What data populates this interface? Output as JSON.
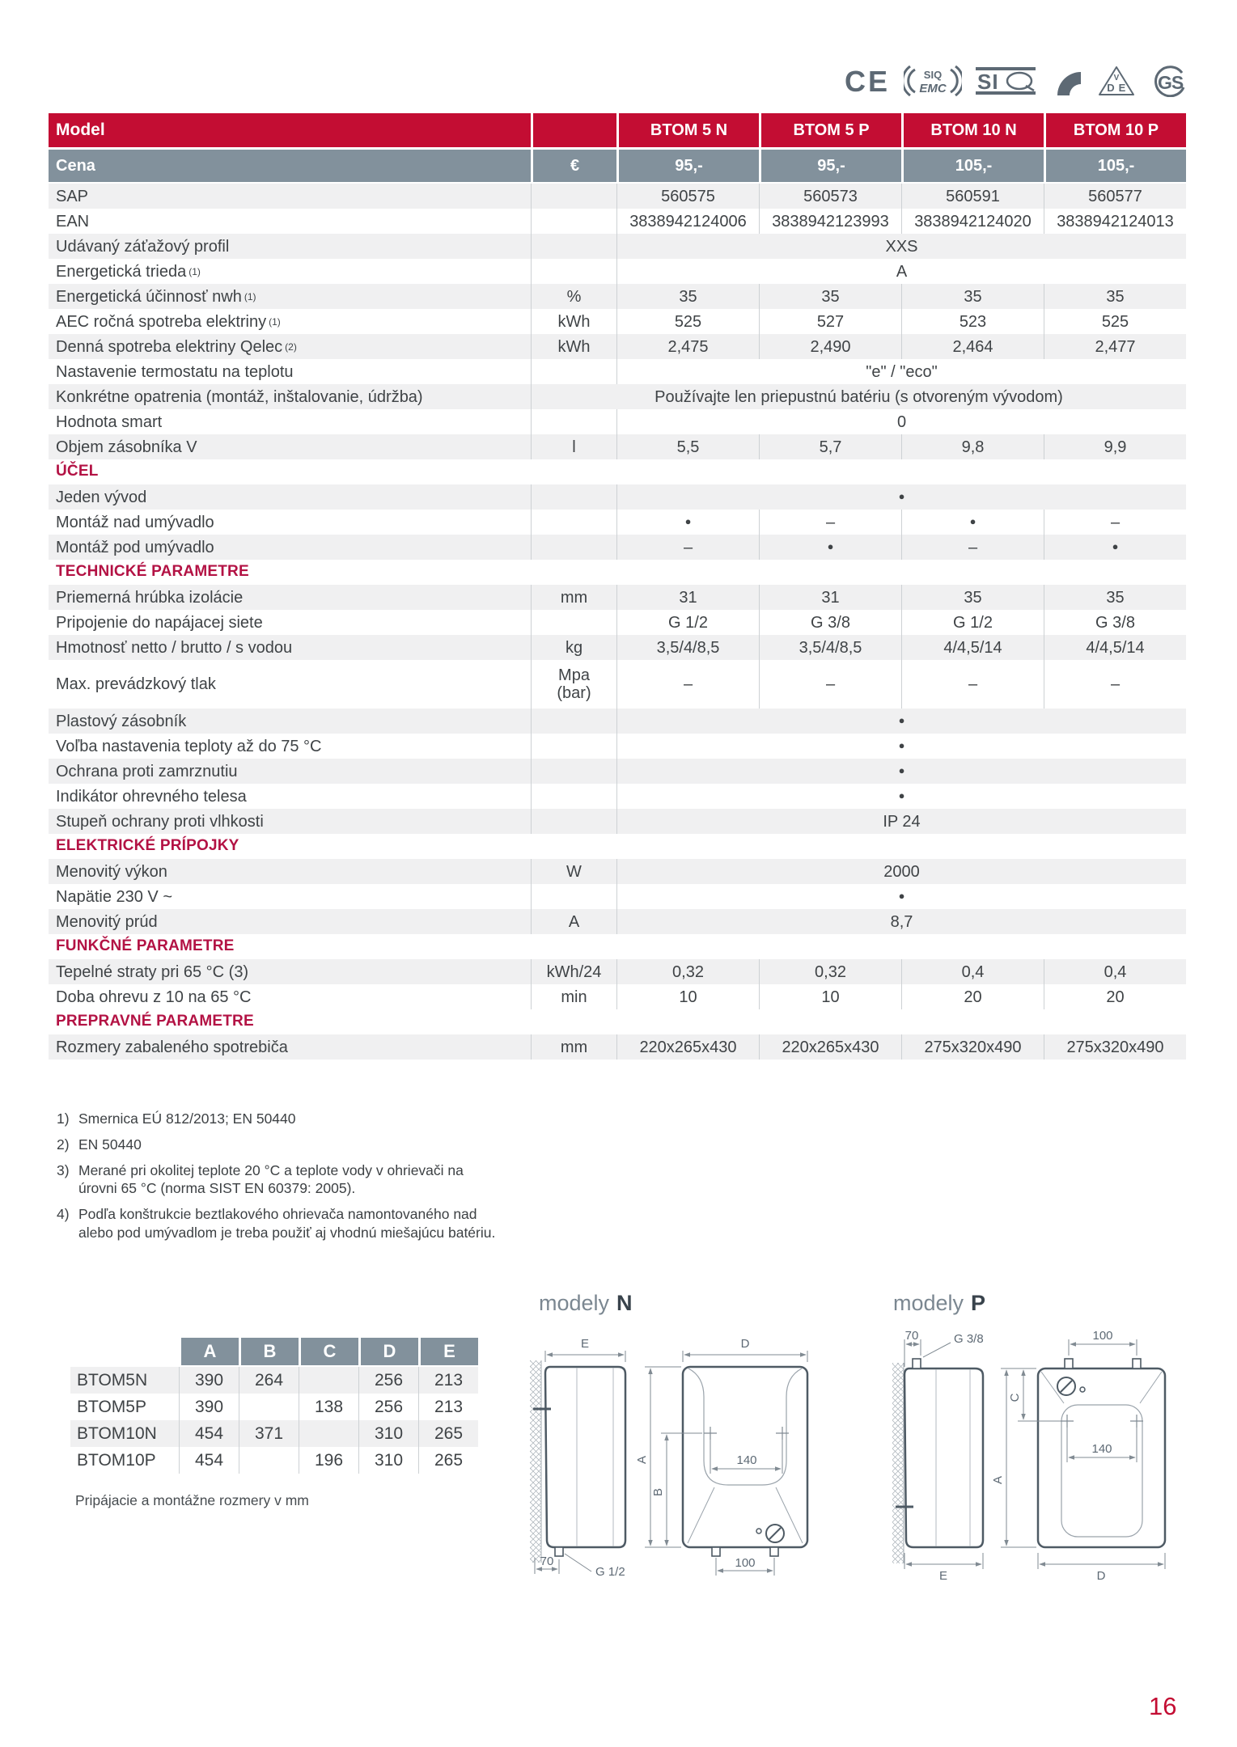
{
  "page": {
    "number": "16"
  },
  "certs": {
    "ce": "CE",
    "siq_emc_top": "SIQ",
    "siq_emc_bottom": "EMC",
    "siq": "SI",
    "vde_v": "V",
    "vde_d": "D",
    "vde_e": "E",
    "gs": "GS"
  },
  "table": {
    "rows": [
      {
        "type": "head",
        "label": "Model",
        "unit": "",
        "values": [
          "BTOM 5 N",
          "BTOM 5 P",
          "BTOM 10 N",
          "BTOM 10 P"
        ]
      },
      {
        "type": "price",
        "label": "Cena",
        "unit": "€",
        "values": [
          "95,-",
          "95,-",
          "105,-",
          "105,-"
        ]
      },
      {
        "type": "data",
        "label": "SAP",
        "unit": "",
        "values": [
          "560575",
          "560573",
          "560591",
          "560577"
        ]
      },
      {
        "type": "data",
        "label": "EAN",
        "unit": "",
        "values": [
          "3838942124006",
          "3838942123993",
          "3838942124020",
          "3838942124013"
        ]
      },
      {
        "type": "span",
        "label": "Udávaný záťažový profil",
        "unit": "",
        "value": "XXS"
      },
      {
        "type": "span",
        "label": "Energetická trieda",
        "sup": "(1)",
        "unit": "",
        "value": "A"
      },
      {
        "type": "data",
        "label": "Energetická účinnosť nwh",
        "sup": "(1)",
        "unit": "%",
        "values": [
          "35",
          "35",
          "35",
          "35"
        ]
      },
      {
        "type": "data",
        "label": "AEC ročná spotreba elektriny",
        "sup": "(1)",
        "unit": "kWh",
        "values": [
          "525",
          "527",
          "523",
          "525"
        ]
      },
      {
        "type": "data",
        "label": "Denná spotreba elektriny Qelec",
        "sup": "(2)",
        "unit": "kWh",
        "values": [
          "2,475",
          "2,490",
          "2,464",
          "2,477"
        ]
      },
      {
        "type": "span",
        "label": "Nastavenie termostatu na teplotu",
        "unit": "",
        "value": "\"e\" / \"eco\""
      },
      {
        "type": "spanwide",
        "label": "Konkrétne opatrenia (montáž, inštalovanie, údržba)",
        "value": "Používajte len priepustnú batériu (s otvoreným vývodom)"
      },
      {
        "type": "span",
        "label": "Hodnota smart",
        "unit": "",
        "value": "0"
      },
      {
        "type": "data",
        "label": "Objem zásobníka V",
        "unit": "l",
        "values": [
          "5,5",
          "5,7",
          "9,8",
          "9,9"
        ]
      },
      {
        "type": "section",
        "label": "ÚČEL"
      },
      {
        "type": "span",
        "label": "Jeden vývod",
        "unit": "",
        "value": "●"
      },
      {
        "type": "data",
        "label": "Montáž nad umývadlo",
        "unit": "",
        "values": [
          "●",
          "–",
          "●",
          "–"
        ]
      },
      {
        "type": "data",
        "label": "Montáž pod umývadlo",
        "unit": "",
        "values": [
          "–",
          "●",
          "–",
          "●"
        ]
      },
      {
        "type": "section",
        "label": "TECHNICKÉ PARAMETRE"
      },
      {
        "type": "data",
        "label": "Priemerná hrúbka izolácie",
        "unit": "mm",
        "values": [
          "31",
          "31",
          "35",
          "35"
        ]
      },
      {
        "type": "data",
        "label": "Pripojenie do napájacej siete",
        "unit": "",
        "values": [
          "G 1/2",
          "G 3/8",
          "G 1/2",
          "G 3/8"
        ]
      },
      {
        "type": "data",
        "label": "Hmotnosť netto / brutto / s vodou",
        "unit": "kg",
        "values": [
          "3,5/4/8,5",
          "3,5/4/8,5",
          "4/4,5/14",
          "4/4,5/14"
        ]
      },
      {
        "type": "tall",
        "label": "Max. prevádzkový tlak",
        "unit": "Mpa\n(bar)",
        "values": [
          "–",
          "–",
          "–",
          "–"
        ]
      },
      {
        "type": "span",
        "label": "Plastový zásobník",
        "unit": "",
        "value": "●"
      },
      {
        "type": "span",
        "label": "Voľba nastavenia teploty až do 75 °C",
        "unit": "",
        "value": "●"
      },
      {
        "type": "span",
        "label": "Ochrana proti zamrznutiu",
        "unit": "",
        "value": "●"
      },
      {
        "type": "span",
        "label": "Indikátor ohrevného telesa",
        "unit": "",
        "value": "●"
      },
      {
        "type": "span",
        "label": "Stupeň ochrany proti vlhkosti",
        "unit": "",
        "value": "IP 24"
      },
      {
        "type": "section",
        "label": "ELEKTRICKÉ PRÍPOJKY"
      },
      {
        "type": "span",
        "label": "Menovitý výkon",
        "unit": "W",
        "value": "2000"
      },
      {
        "type": "span",
        "label": "Napätie 230 V ~",
        "unit": "",
        "value": "●"
      },
      {
        "type": "span",
        "label": "Menovitý prúd",
        "unit": "A",
        "value": "8,7"
      },
      {
        "type": "section",
        "label": "FUNKČNÉ PARAMETRE"
      },
      {
        "type": "data",
        "label": "Tepelné straty pri 65 °C (3)",
        "unit": "kWh/24",
        "values": [
          "0,32",
          "0,32",
          "0,4",
          "0,4"
        ]
      },
      {
        "type": "data",
        "label": "Doba ohrevu z 10 na 65 °C",
        "unit": "min",
        "values": [
          "10",
          "10",
          "20",
          "20"
        ]
      },
      {
        "type": "section",
        "label": "PREPRAVNÉ PARAMETRE"
      },
      {
        "type": "data",
        "label": "Rozmery zabaleného spotrebiča",
        "unit": "mm",
        "values": [
          "220x265x430",
          "220x265x430",
          "275x320x490",
          "275x320x490"
        ]
      }
    ]
  },
  "footnotes": [
    {
      "num": "1)",
      "text": "Smernica EÚ 812/2013; EN 50440"
    },
    {
      "num": "2)",
      "text": "EN 50440"
    },
    {
      "num": "3)",
      "text": "Merané pri okolitej teplote 20 °C a teplote vody v ohrievači na úrovni 65 °C (norma SIST EN 60379: 2005)."
    },
    {
      "num": "4)",
      "text": "Podľa konštrukcie beztlakového ohrievača namontovaného nad alebo pod umývadlom je treba použiť aj vhodnú miešajúcu batériu."
    }
  ],
  "dim_table": {
    "columns": [
      "A",
      "B",
      "C",
      "D",
      "E"
    ],
    "rows": [
      {
        "model": "BTOM5N",
        "values": [
          "390",
          "264",
          "",
          "256",
          "213"
        ]
      },
      {
        "model": "BTOM5P",
        "values": [
          "390",
          "",
          "138",
          "256",
          "213"
        ]
      },
      {
        "model": "BTOM10N",
        "values": [
          "454",
          "371",
          "",
          "310",
          "265"
        ]
      },
      {
        "model": "BTOM10P",
        "values": [
          "454",
          "",
          "196",
          "310",
          "265"
        ]
      }
    ],
    "caption": "Pripájacie a montážne rozmery v mm"
  },
  "diagrams": {
    "n": {
      "title_prefix": "modely",
      "model": "N",
      "dim_e": "E",
      "dim_d": "D",
      "dim_a": "A",
      "dim_b": "B",
      "dim_70": "70",
      "dim_100": "100",
      "dim_140": "140",
      "fitting": "G 1/2"
    },
    "p": {
      "title_prefix": "modely",
      "model": "P",
      "dim_e": "E",
      "dim_d": "D",
      "dim_a": "A",
      "dim_c": "C",
      "dim_70": "70",
      "dim_100": "100",
      "dim_140": "140",
      "fitting": "G 3/8"
    }
  },
  "colors": {
    "brand_red": "#c30d33",
    "section_red": "#b31244",
    "slate_gray": "#82919c",
    "stripe_gray": "#f0f0f1"
  }
}
